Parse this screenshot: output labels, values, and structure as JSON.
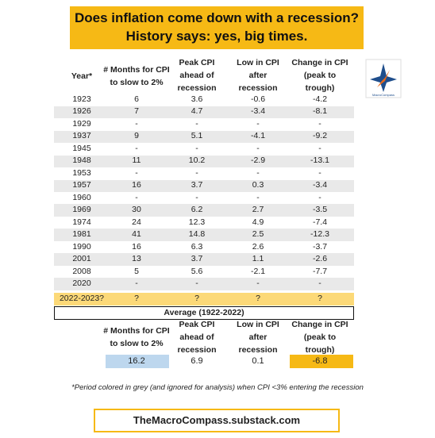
{
  "header": {
    "title_lines": [
      "Does inflation come down with a recession?",
      "History says: yes, big times."
    ]
  },
  "logo": {
    "text": "MacroCompass"
  },
  "table": {
    "columns": [
      [
        "Year*"
      ],
      [
        "# Months for CPI",
        "to slow to 2%"
      ],
      [
        "Peak CPI",
        "ahead of",
        "recession"
      ],
      [
        "Low in CPI",
        "after",
        "recession"
      ],
      [
        "Change in CPI",
        "(peak to",
        "trough)"
      ]
    ],
    "rows": [
      [
        "1923",
        "6",
        "3.6",
        "-0.6",
        "-4.2"
      ],
      [
        "1926",
        "7",
        "4.7",
        "-3.4",
        "-8.1"
      ],
      [
        "1929",
        "-",
        "-",
        "-",
        "-"
      ],
      [
        "1937",
        "9",
        "5.1",
        "-4.1",
        "-9.2"
      ],
      [
        "1945",
        "-",
        "-",
        "-",
        "-"
      ],
      [
        "1948",
        "11",
        "10.2",
        "-2.9",
        "-13.1"
      ],
      [
        "1953",
        "-",
        "-",
        "-",
        "-"
      ],
      [
        "1957",
        "16",
        "3.7",
        "0.3",
        "-3.4"
      ],
      [
        "1960",
        "-",
        "-",
        "-",
        "-"
      ],
      [
        "1969",
        "30",
        "6.2",
        "2.7",
        "-3.5"
      ],
      [
        "1974",
        "24",
        "12.3",
        "4.9",
        "-7.4"
      ],
      [
        "1981",
        "41",
        "14.8",
        "2.5",
        "-12.3"
      ],
      [
        "1990",
        "16",
        "6.3",
        "2.6",
        "-3.7"
      ],
      [
        "2001",
        "13",
        "3.7",
        "1.1",
        "-2.6"
      ],
      [
        "2008",
        "5",
        "5.6",
        "-2.1",
        "-7.7"
      ],
      [
        "2020",
        "-",
        "-",
        "-",
        "-"
      ]
    ],
    "current_row": [
      "2022-2023?",
      "?",
      "?",
      "?",
      "?"
    ]
  },
  "average": {
    "title": "Average (1922-2022)",
    "columns": [
      [
        "# Months for CPI",
        "to slow to 2%"
      ],
      [
        "Peak CPI",
        "ahead of",
        "recession"
      ],
      [
        "Low in CPI",
        "after",
        "recession"
      ],
      [
        "Change in CPI",
        "(peak to",
        "trough)"
      ]
    ],
    "values": [
      "16.2",
      "6.9",
      "0.1",
      "-6.8"
    ]
  },
  "footnote": "*Period colored in grey (and ignored for analysis) when CPI  <3% entering the recession",
  "footer": "TheMacroCompass.substack.com"
}
